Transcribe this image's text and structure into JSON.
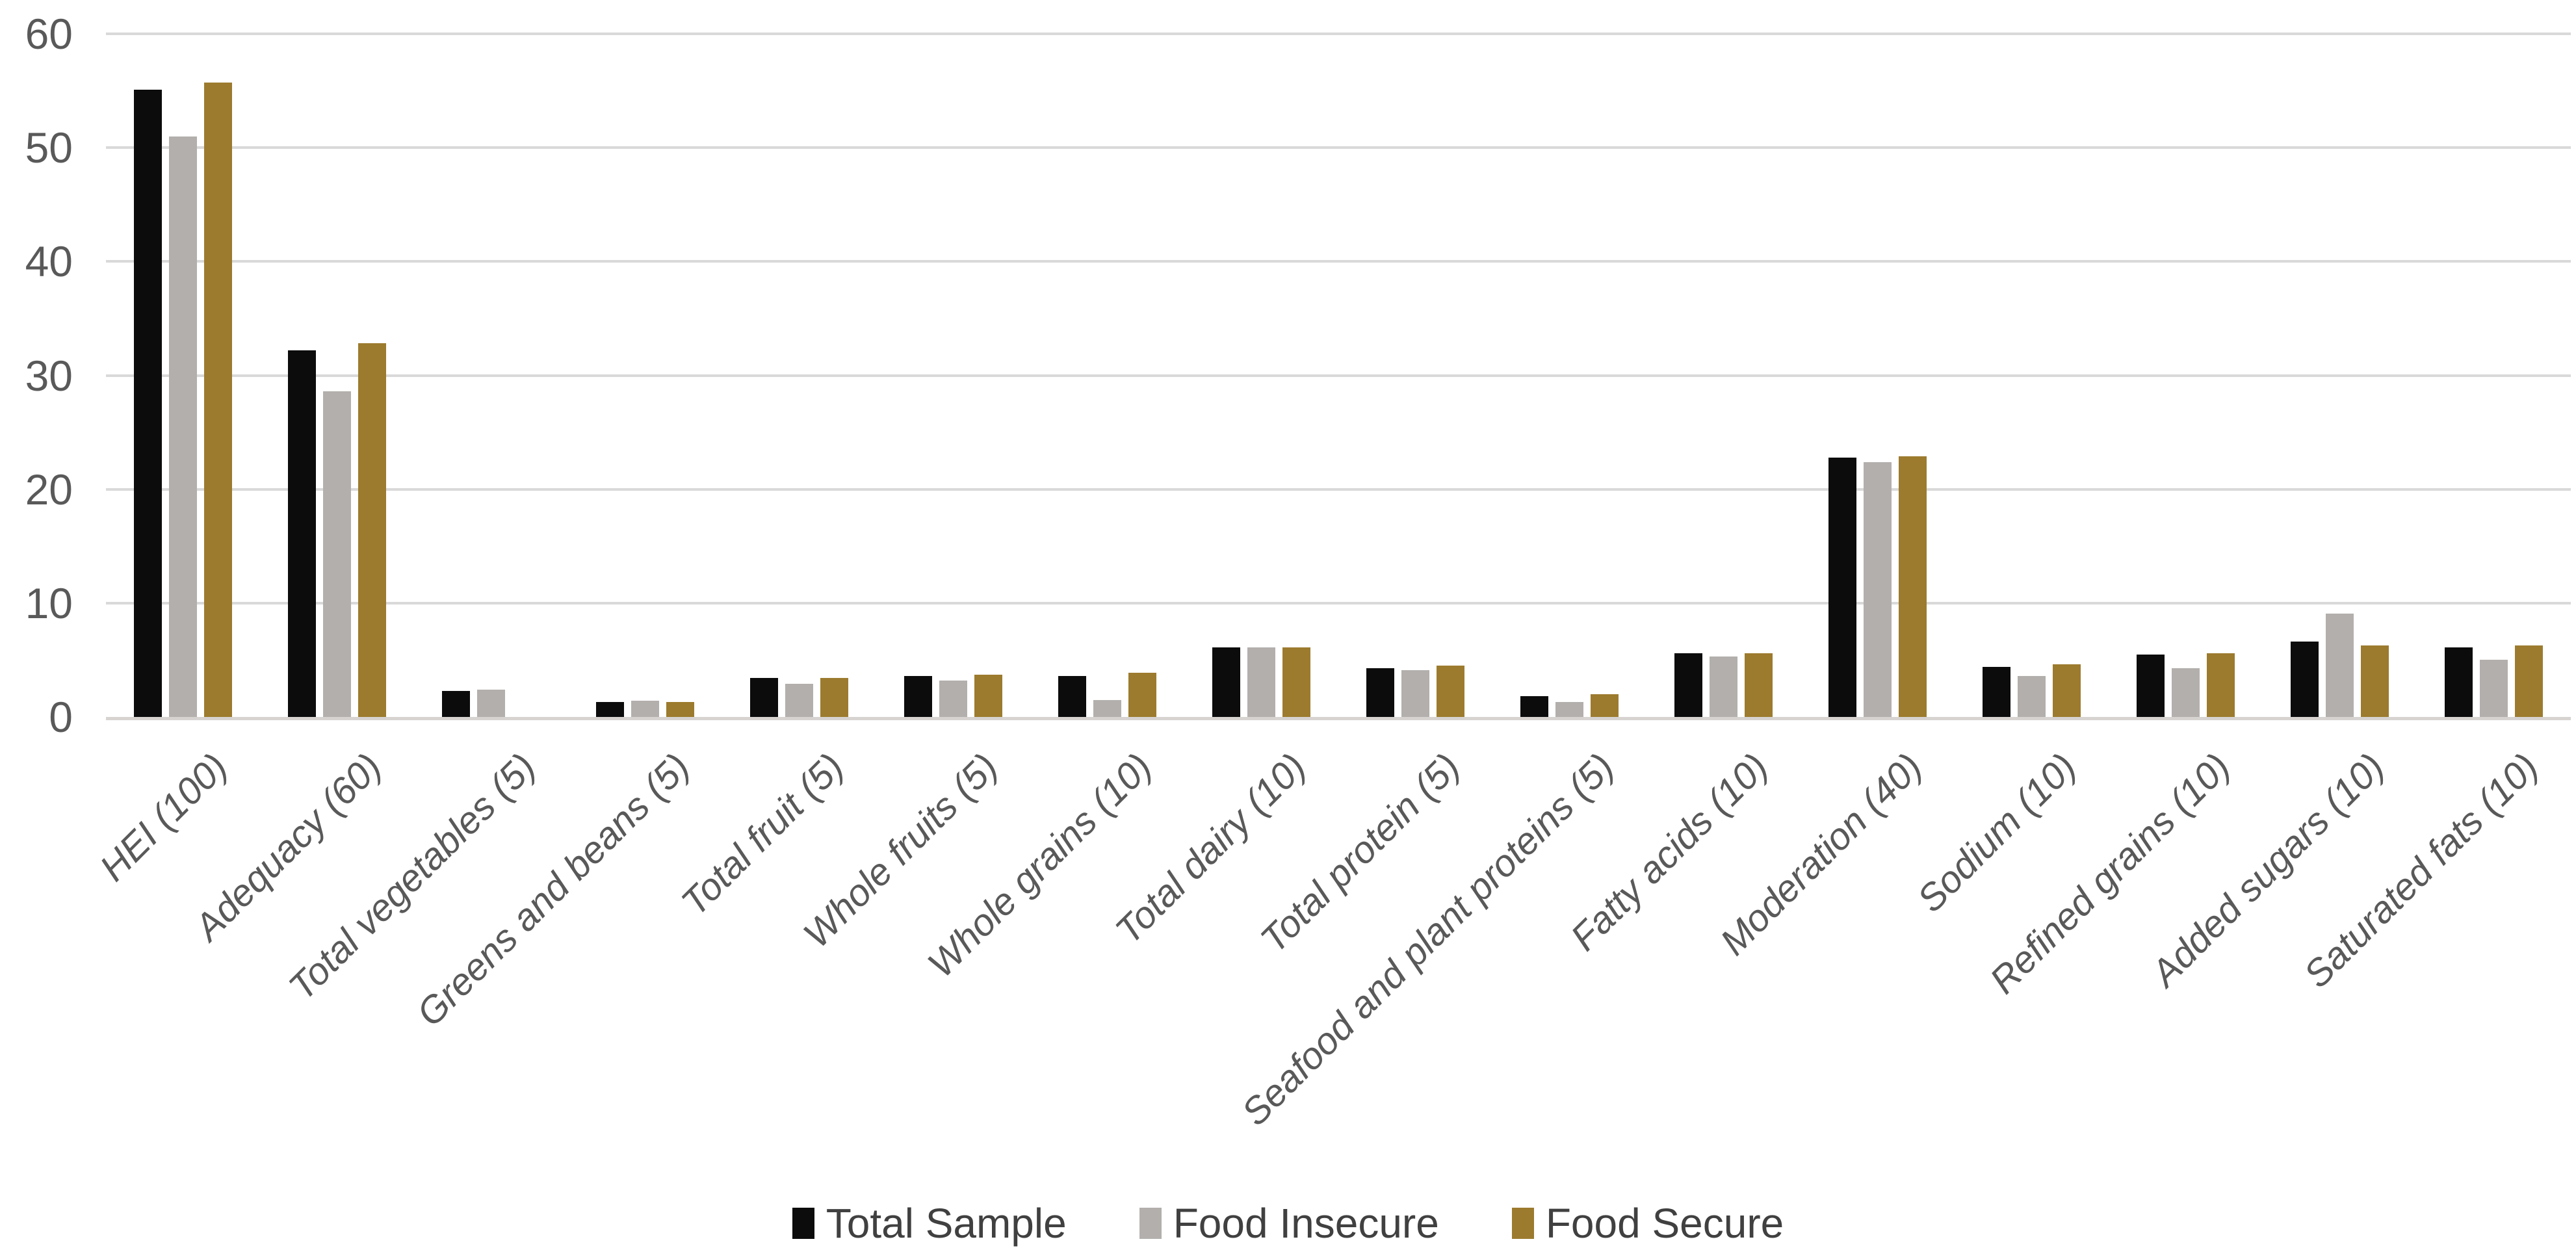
{
  "chart_data": {
    "type": "bar",
    "title": "",
    "xlabel": "",
    "ylabel": "",
    "ylim": [
      0,
      60
    ],
    "yticks": [
      0,
      10,
      20,
      30,
      40,
      50,
      60
    ],
    "grid": true,
    "legend_position": "bottom",
    "axis_text_color": "#595959",
    "legend_text_color": "#404040",
    "gridline_color": "#d9d9d9",
    "categories": [
      "HEI (100)",
      "Adequacy (60)",
      "Total vegetables (5)",
      "Greens and beans (5)",
      "Total fruit (5)",
      "Whole fruits (5)",
      "Whole grains (10)",
      "Total dairy (10)",
      "Total protein (5)",
      "Seafood and plant proteins (5)",
      "Fatty acids (10)",
      "Moderation (40)",
      "Sodium (10)",
      "Refined grains (10)",
      "Added sugars (10)",
      "Saturated fats (10)"
    ],
    "series": [
      {
        "name": "Total Sample",
        "color": "#0c0c0c",
        "values": [
          55.1,
          32.2,
          2.3,
          1.3,
          3.4,
          3.6,
          3.6,
          6.1,
          4.3,
          1.8,
          5.6,
          22.8,
          4.4,
          5.5,
          6.6,
          6.1
        ]
      },
      {
        "name": "Food Insecure",
        "color": "#b3afac",
        "values": [
          51.0,
          28.6,
          2.4,
          1.4,
          2.9,
          3.2,
          1.5,
          6.1,
          4.1,
          1.3,
          5.3,
          22.4,
          3.6,
          4.3,
          9.1,
          5.0
        ]
      },
      {
        "name": "Food Secure",
        "color": "#9c7b2e",
        "values": [
          55.7,
          32.8,
          0,
          1.3,
          3.4,
          3.7,
          3.9,
          6.1,
          4.5,
          2.0,
          5.6,
          22.9,
          4.6,
          5.6,
          6.3,
          6.3
        ]
      }
    ]
  }
}
